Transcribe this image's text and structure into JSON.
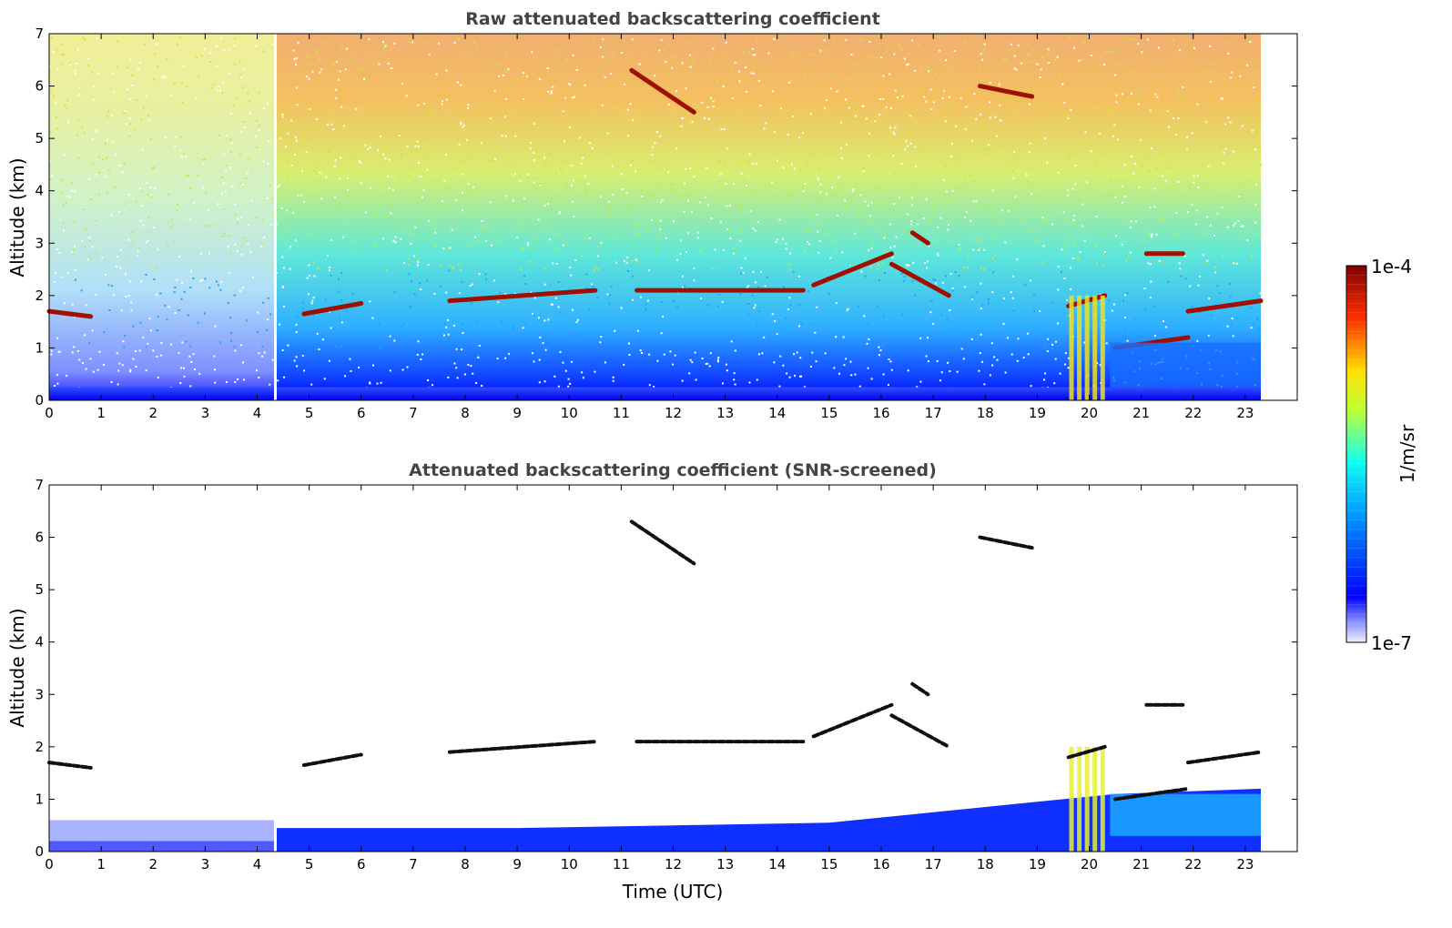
{
  "chart_data": [
    {
      "type": "heatmap",
      "title": "Raw attenuated backscattering coefficient",
      "xlabel": "",
      "ylabel": "Altitude (km)",
      "xlim": [
        0,
        24
      ],
      "ylim": [
        0,
        7
      ],
      "xticks": [
        "0",
        "1",
        "2",
        "3",
        "4",
        "5",
        "6",
        "7",
        "8",
        "9",
        "10",
        "11",
        "12",
        "13",
        "14",
        "15",
        "16",
        "17",
        "18",
        "19",
        "20",
        "21",
        "22",
        "23"
      ],
      "yticks": [
        "0",
        "1",
        "2",
        "3",
        "4",
        "5",
        "6",
        "7"
      ],
      "data_end_time": 23.3,
      "gap_time": 4.35,
      "cloud_layers": [
        {
          "t": [
            0.0,
            0.8
          ],
          "alt": [
            1.7,
            1.6
          ]
        },
        {
          "t": [
            4.9,
            6.0
          ],
          "alt": [
            1.65,
            1.85
          ]
        },
        {
          "t": [
            7.7,
            10.5
          ],
          "alt": [
            1.9,
            2.1
          ]
        },
        {
          "t": [
            11.3,
            14.5
          ],
          "alt": [
            2.1,
            2.1
          ]
        },
        {
          "t": [
            14.7,
            16.2
          ],
          "alt": [
            2.2,
            2.8
          ]
        },
        {
          "t": [
            16.2,
            17.3
          ],
          "alt": [
            2.6,
            2.0
          ]
        },
        {
          "t": [
            16.6,
            16.9
          ],
          "alt": [
            3.2,
            3.0
          ]
        },
        {
          "t": [
            11.2,
            12.4
          ],
          "alt": [
            6.3,
            5.5
          ]
        },
        {
          "t": [
            17.9,
            18.9
          ],
          "alt": [
            6.0,
            5.8
          ]
        },
        {
          "t": [
            19.6,
            20.3
          ],
          "alt": [
            1.8,
            2.0
          ]
        },
        {
          "t": [
            20.5,
            21.9
          ],
          "alt": [
            1.0,
            1.2
          ]
        },
        {
          "t": [
            21.1,
            21.8
          ],
          "alt": [
            2.8,
            2.8
          ]
        },
        {
          "t": [
            21.9,
            23.3
          ],
          "alt": [
            1.7,
            1.9
          ]
        }
      ]
    },
    {
      "type": "heatmap",
      "title": "Attenuated backscattering coefficient (SNR-screened)",
      "xlabel": "Time (UTC)",
      "ylabel": "Altitude (km)",
      "xlim": [
        0,
        24
      ],
      "ylim": [
        0,
        7
      ],
      "xticks": [
        "0",
        "1",
        "2",
        "3",
        "4",
        "5",
        "6",
        "7",
        "8",
        "9",
        "10",
        "11",
        "12",
        "13",
        "14",
        "15",
        "16",
        "17",
        "18",
        "19",
        "20",
        "21",
        "22",
        "23"
      ],
      "yticks": [
        "0",
        "1",
        "2",
        "3",
        "4",
        "5",
        "6",
        "7"
      ],
      "data_end_time": 23.3,
      "gap_time": 4.35
    }
  ],
  "colorbar": {
    "label": "1/m/sr",
    "max_label": "1e-4",
    "min_label": "1e-7",
    "scale": "log",
    "colormap": "jet"
  }
}
